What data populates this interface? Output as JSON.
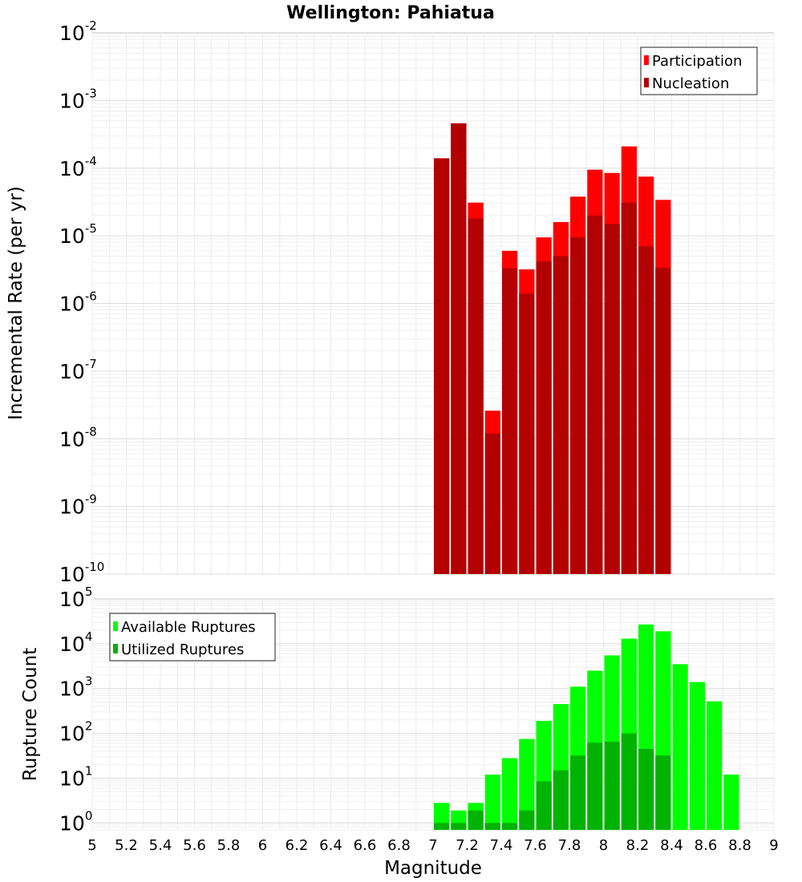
{
  "title": "Wellington: Pahiatua",
  "chart_data": [
    {
      "type": "bar",
      "panel": "top",
      "ylabel": "Incremental Rate (per yr)",
      "yscale": "log",
      "ylim": [
        1e-10,
        0.01
      ],
      "ytick_base": "10",
      "ytick_exponents": [
        "-10",
        "-9",
        "-8",
        "-7",
        "-6",
        "-5",
        "-4",
        "-3",
        "-2"
      ],
      "xlim": [
        5,
        9
      ],
      "bin_width": 0.1,
      "legend_position": "top-right",
      "x": [
        7.05,
        7.15,
        7.25,
        7.35,
        7.45,
        7.55,
        7.65,
        7.75,
        7.85,
        7.95,
        8.05,
        8.15,
        8.25,
        8.35
      ],
      "series": [
        {
          "name": "Participation",
          "color": "#ff0000",
          "values": [
            0.00014,
            0.00046,
            3.1e-05,
            2.6e-08,
            6e-06,
            3.2e-06,
            9.5e-06,
            1.6e-05,
            3.8e-05,
            9.5e-05,
            8.5e-05,
            0.00021,
            7.5e-05,
            3.4e-05
          ]
        },
        {
          "name": "Nucleation",
          "color": "#b30000",
          "values": [
            0.00014,
            0.00046,
            1.8e-05,
            1.2e-08,
            3.3e-06,
            1.4e-06,
            4.2e-06,
            5e-06,
            9.5e-06,
            2e-05,
            1.5e-05,
            3.1e-05,
            7e-06,
            3.4e-06
          ]
        }
      ]
    },
    {
      "type": "bar",
      "panel": "bottom",
      "xlabel": "Magnitude",
      "ylabel": "Rupture Count",
      "yscale": "log",
      "ylim": [
        0.7,
        100000
      ],
      "ytick_base": "10",
      "ytick_exponents": [
        "0",
        "1",
        "2",
        "3",
        "4",
        "5"
      ],
      "xlim": [
        5,
        9
      ],
      "xticks": [
        "5",
        "5.2",
        "5.4",
        "5.6",
        "5.8",
        "6",
        "6.2",
        "6.4",
        "6.6",
        "6.8",
        "7",
        "7.2",
        "7.4",
        "7.6",
        "7.8",
        "8",
        "8.2",
        "8.4",
        "8.6",
        "8.8",
        "9"
      ],
      "bin_width": 0.1,
      "legend_position": "top-left",
      "x": [
        7.05,
        7.15,
        7.25,
        7.35,
        7.45,
        7.55,
        7.65,
        7.75,
        7.85,
        7.95,
        8.05,
        8.15,
        8.25,
        8.35,
        8.45,
        8.55,
        8.65,
        8.75
      ],
      "series": [
        {
          "name": "Available Ruptures",
          "color": "#00ff00",
          "values": [
            2.8,
            1.9,
            2.8,
            12,
            28,
            75,
            190,
            450,
            1100,
            2500,
            5500,
            13000,
            27000,
            19000,
            3500,
            1400,
            520,
            12
          ]
        },
        {
          "name": "Utilized Ruptures",
          "color": "#00b300",
          "values": [
            1,
            1,
            1.9,
            1,
            1,
            1.9,
            8.5,
            15,
            32,
            62,
            65,
            100,
            45,
            32,
            0,
            0,
            0,
            0
          ]
        }
      ]
    }
  ]
}
